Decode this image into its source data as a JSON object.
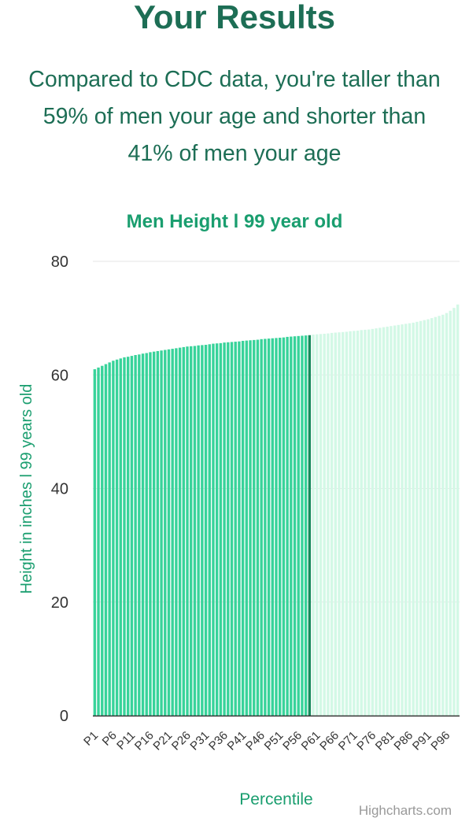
{
  "header": {
    "title": "Your Results",
    "summary_lines": [
      "Compared to CDC data, you're taller than",
      "59% of men your age and shorter than",
      "41% of men your age"
    ]
  },
  "colors": {
    "heading": "#1d6e55",
    "chart_title": "#1a9e6f",
    "bar_below": "#38d39a",
    "bar_above": "#d3f8e6",
    "bar_highlight": "#178a5c",
    "gridline": "#e6e6e6",
    "axis_label": "#333333"
  },
  "chart_data": {
    "type": "bar",
    "title": "Men Height l 99 year old",
    "xlabel": "Percentile",
    "ylabel": "Height in inches l 99 years old",
    "ylim": [
      0,
      80
    ],
    "yticks": [
      0,
      20,
      40,
      60,
      80
    ],
    "grid": true,
    "highlight_index": 58,
    "categories": [
      "P1",
      "P2",
      "P3",
      "P4",
      "P5",
      "P6",
      "P7",
      "P8",
      "P9",
      "P10",
      "P11",
      "P12",
      "P13",
      "P14",
      "P15",
      "P16",
      "P17",
      "P18",
      "P19",
      "P20",
      "P21",
      "P22",
      "P23",
      "P24",
      "P25",
      "P26",
      "P27",
      "P28",
      "P29",
      "P30",
      "P31",
      "P32",
      "P33",
      "P34",
      "P35",
      "P36",
      "P37",
      "P38",
      "P39",
      "P40",
      "P41",
      "P42",
      "P43",
      "P44",
      "P45",
      "P46",
      "P47",
      "P48",
      "P49",
      "P50",
      "P51",
      "P52",
      "P53",
      "P54",
      "P55",
      "P56",
      "P57",
      "P58",
      "P59",
      "P60",
      "P61",
      "P62",
      "P63",
      "P64",
      "P65",
      "P66",
      "P67",
      "P68",
      "P69",
      "P70",
      "P71",
      "P72",
      "P73",
      "P74",
      "P75",
      "P76",
      "P77",
      "P78",
      "P79",
      "P80",
      "P81",
      "P82",
      "P83",
      "P84",
      "P85",
      "P86",
      "P87",
      "P88",
      "P89",
      "P90",
      "P91",
      "P92",
      "P93",
      "P94",
      "P95",
      "P96",
      "P97",
      "P98",
      "P99"
    ],
    "tick_labels": [
      "P1",
      "P6",
      "P11",
      "P16",
      "P21",
      "P26",
      "P31",
      "P36",
      "P41",
      "P46",
      "P51",
      "P56",
      "P61",
      "P66",
      "P71",
      "P76",
      "P81",
      "P86",
      "P91",
      "P96"
    ],
    "values": [
      61.0,
      61.3,
      61.6,
      61.9,
      62.2,
      62.5,
      62.7,
      62.9,
      63.1,
      63.2,
      63.35,
      63.5,
      63.6,
      63.75,
      63.85,
      64.0,
      64.1,
      64.2,
      64.3,
      64.4,
      64.5,
      64.6,
      64.7,
      64.8,
      64.9,
      65.0,
      65.05,
      65.1,
      65.2,
      65.25,
      65.3,
      65.4,
      65.5,
      65.55,
      65.6,
      65.7,
      65.75,
      65.8,
      65.85,
      65.9,
      66.0,
      66.05,
      66.1,
      66.15,
      66.2,
      66.3,
      66.35,
      66.4,
      66.45,
      66.5,
      66.55,
      66.6,
      66.7,
      66.75,
      66.8,
      66.85,
      66.9,
      66.95,
      67.0,
      67.1,
      67.15,
      67.2,
      67.25,
      67.3,
      67.4,
      67.45,
      67.5,
      67.55,
      67.6,
      67.7,
      67.75,
      67.8,
      67.9,
      67.95,
      68.0,
      68.1,
      68.2,
      68.3,
      68.4,
      68.5,
      68.6,
      68.7,
      68.8,
      68.9,
      69.0,
      69.1,
      69.2,
      69.35,
      69.5,
      69.65,
      69.8,
      70.0,
      70.2,
      70.4,
      70.6,
      70.9,
      71.3,
      71.8,
      72.4
    ]
  },
  "credits": "Highcharts.com"
}
